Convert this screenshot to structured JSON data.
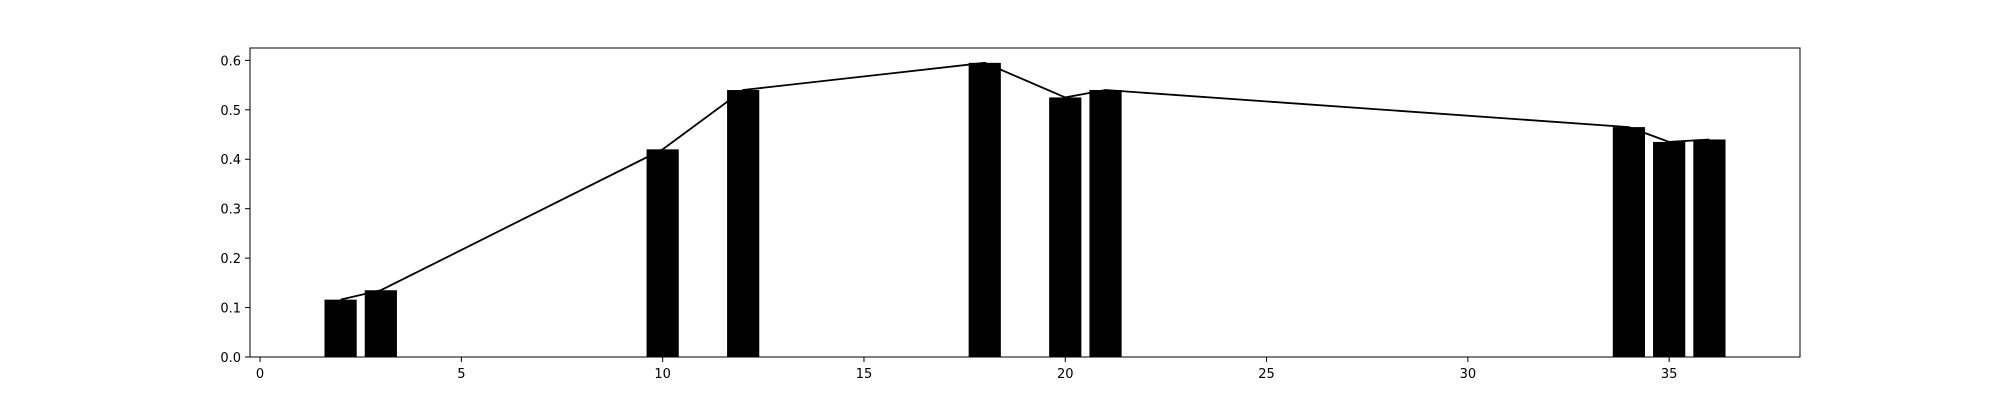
{
  "chart_data": {
    "type": "bar",
    "x": [
      2,
      3,
      10,
      12,
      18,
      20,
      21,
      34,
      35,
      36
    ],
    "values": [
      0.116,
      0.135,
      0.42,
      0.54,
      0.595,
      0.525,
      0.54,
      0.465,
      0.435,
      0.44
    ],
    "title": "",
    "xlabel": "",
    "ylabel": "",
    "xlim": [
      -0.25,
      38.25
    ],
    "ylim": [
      0,
      0.625
    ],
    "xticks": [
      0,
      5,
      10,
      15,
      20,
      25,
      30,
      35
    ],
    "yticks": [
      0.0,
      0.1,
      0.2,
      0.3,
      0.4,
      0.5,
      0.6
    ],
    "xtick_labels": [
      "0",
      "5",
      "10",
      "15",
      "20",
      "25",
      "30",
      "35"
    ],
    "ytick_labels": [
      "0.0",
      "0.1",
      "0.2",
      "0.3",
      "0.4",
      "0.5",
      "0.6"
    ],
    "bar_width": 0.8,
    "overlay_line": true,
    "grid": false,
    "colors": {
      "bar": "#000000",
      "line": "#000000",
      "axes": "#000000",
      "background": "#ffffff"
    }
  }
}
